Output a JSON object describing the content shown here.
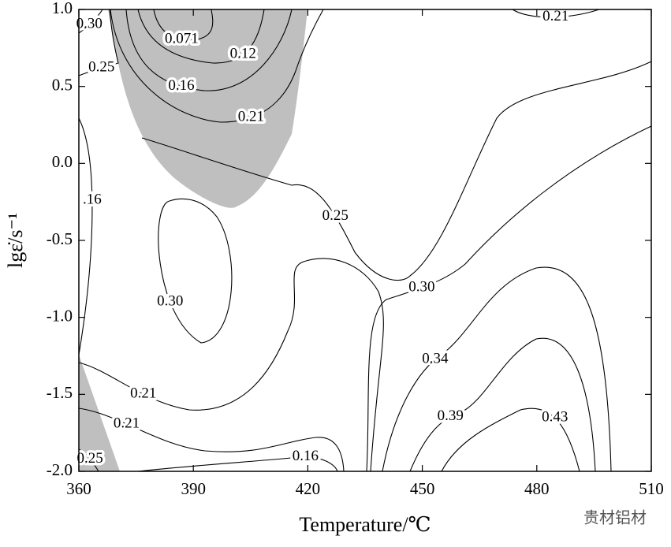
{
  "chart_data": {
    "type": "contour",
    "x_label": "Temperature/℃",
    "y_label": "lgε̇/s⁻¹",
    "xlim": [
      360,
      510
    ],
    "xticks": [
      360,
      390,
      420,
      450,
      480,
      510
    ],
    "ylim": [
      -2,
      1
    ],
    "yticks": [
      {
        "value": -2,
        "label": "-2.0"
      },
      -1.5,
      {
        "value": -1,
        "label": "-1.0"
      },
      -0.5,
      {
        "value": 0,
        "label": "0.0"
      },
      0.5,
      {
        "value": 1,
        "label": "1.0"
      }
    ],
    "contour_labels": [
      {
        "value": 0.3,
        "label": "0.30"
      },
      {
        "value": 0.25,
        "label": "0.25"
      },
      {
        "value": 0.071,
        "label": "0.071"
      },
      {
        "value": 0.12,
        "label": "0.12"
      },
      {
        "value": 0.16,
        "label": "0.16"
      },
      {
        "value": 0.21,
        "label": "0.21"
      },
      {
        "value": 0.21,
        "label": "0.21"
      },
      {
        "value": 0.16,
        "label": ".16"
      },
      {
        "value": 0.3,
        "label": "0.30"
      },
      {
        "value": 0.25,
        "label": "0.25"
      },
      {
        "value": 0.3,
        "label": "0.30"
      },
      {
        "value": 0.21,
        "label": "0.21"
      },
      {
        "value": 0.21,
        "label": "0.21"
      },
      {
        "value": 0.16,
        "label": "0.16"
      },
      {
        "value": 0.25,
        "label": "0.25"
      },
      {
        "value": 0.34,
        "label": "0.34"
      },
      {
        "value": 0.39,
        "label": "0.39"
      },
      {
        "value": 0.43,
        "label": "0.43"
      }
    ],
    "watermark": "贵材铝材"
  }
}
